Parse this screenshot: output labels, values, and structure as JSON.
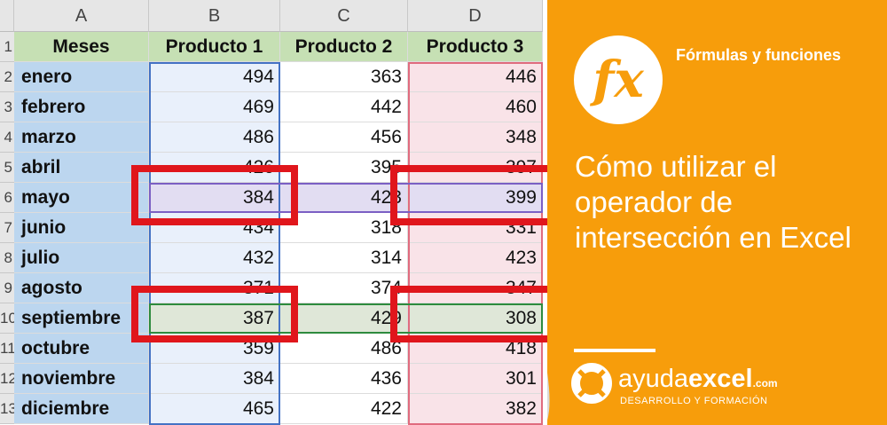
{
  "sheet": {
    "column_headers": [
      "A",
      "B",
      "C",
      "D"
    ],
    "row_numbers": [
      "1",
      "2",
      "3",
      "4",
      "5",
      "6",
      "7",
      "8",
      "9",
      "10",
      "11",
      "12",
      "13"
    ],
    "header_row": [
      "Meses",
      "Producto 1",
      "Producto 2",
      "Producto 3"
    ],
    "rows": [
      [
        "enero",
        "494",
        "363",
        "446"
      ],
      [
        "febrero",
        "469",
        "442",
        "460"
      ],
      [
        "marzo",
        "486",
        "456",
        "348"
      ],
      [
        "abril",
        "426",
        "395",
        "397"
      ],
      [
        "mayo",
        "384",
        "423",
        "399"
      ],
      [
        "junio",
        "434",
        "318",
        "331"
      ],
      [
        "julio",
        "432",
        "314",
        "423"
      ],
      [
        "agosto",
        "371",
        "374",
        "347"
      ],
      [
        "septiembre",
        "387",
        "429",
        "308"
      ],
      [
        "octubre",
        "359",
        "486",
        "418"
      ],
      [
        "noviembre",
        "384",
        "436",
        "301"
      ],
      [
        "diciembre",
        "465",
        "422",
        "382"
      ]
    ]
  },
  "banner": {
    "icon_label": "fx",
    "category": "Fórmulas y funciones",
    "title": "Cómo utilizar el operador de intersección en Excel",
    "brand_prefix": "ayuda",
    "brand_bold": "excel",
    "brand_suffix": ".com",
    "tagline": "DESARROLLO Y FORMACIÓN"
  },
  "colors": {
    "accent": "#f79d0b",
    "month_column": "#bcd6ef",
    "header_row": "#c6e0b4",
    "highlight_box": "#e0161c",
    "producto1_range": "#e9f0fb",
    "producto3_range": "#f9e3e8",
    "mayo_row": "#e2ddf2",
    "septiembre_row": "#dfe7d8"
  }
}
